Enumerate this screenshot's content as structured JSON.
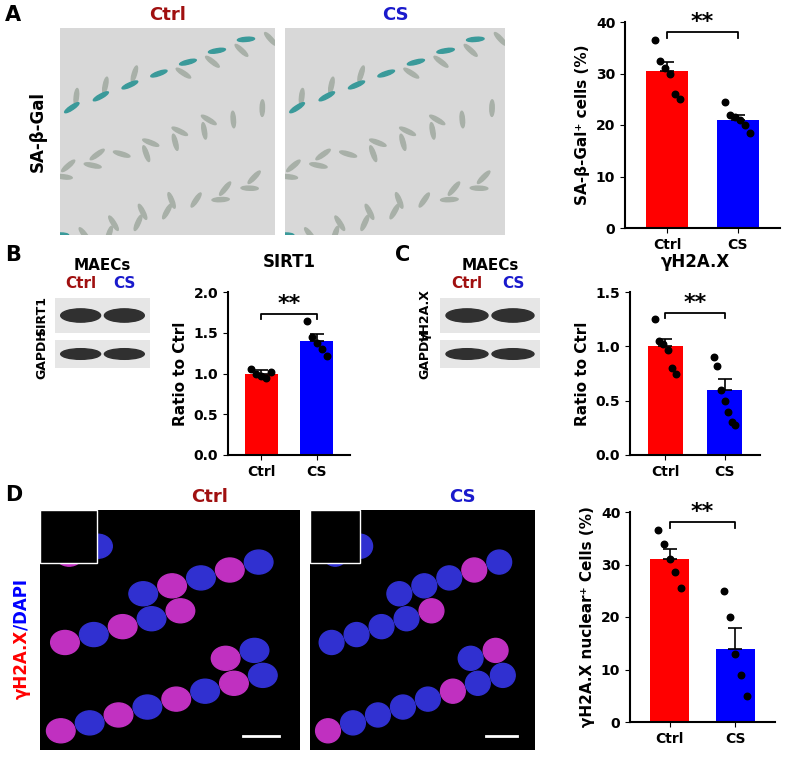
{
  "chart_data": [
    {
      "type": "bar",
      "ylabel": "SA-β-Gal⁺ cells (%)",
      "categories": [
        "Ctrl",
        "CS"
      ],
      "values": [
        30.5,
        21.0
      ],
      "errors": [
        1.8,
        1.0
      ],
      "points": [
        [
          36.5,
          32.5,
          31.0,
          30.0,
          26.0,
          25.0
        ],
        [
          24.5,
          22.0,
          21.5,
          21.0,
          20.0,
          18.5
        ]
      ],
      "colors": [
        "#ff0000",
        "#0000ff"
      ],
      "ylim": [
        0,
        40
      ],
      "yticks": [
        0,
        10,
        20,
        30,
        40
      ],
      "annotations": [
        "**"
      ]
    },
    {
      "type": "bar",
      "title": "SIRT1",
      "ylabel": "Ratio to Ctrl",
      "categories": [
        "Ctrl",
        "CS"
      ],
      "values": [
        1.0,
        1.4
      ],
      "errors": [
        0.04,
        0.08
      ],
      "points": [
        [
          1.05,
          1.0,
          0.97,
          0.95,
          1.02
        ],
        [
          1.65,
          1.45,
          1.38,
          1.3,
          1.22
        ]
      ],
      "colors": [
        "#ff0000",
        "#0000ff"
      ],
      "ylim": [
        0,
        2.0
      ],
      "yticks": [
        {
          "value": 0,
          "label": "0.0"
        },
        {
          "value": 0.5,
          "label": "0.5"
        },
        {
          "value": 1.0,
          "label": "1.0"
        },
        {
          "value": 1.5,
          "label": "1.5"
        },
        {
          "value": 2.0,
          "label": "2.0"
        }
      ],
      "annotations": [
        "**"
      ]
    },
    {
      "type": "bar",
      "title": "γH2A.X",
      "ylabel": "Ratio to Ctrl",
      "categories": [
        "Ctrl",
        "CS"
      ],
      "values": [
        1.0,
        0.6
      ],
      "errors": [
        0.07,
        0.1
      ],
      "points": [
        [
          1.25,
          1.05,
          1.02,
          0.97,
          0.8,
          0.75
        ],
        [
          0.9,
          0.82,
          0.6,
          0.5,
          0.4,
          0.3,
          0.28
        ]
      ],
      "colors": [
        "#ff0000",
        "#0000ff"
      ],
      "ylim": [
        0,
        1.5
      ],
      "yticks": [
        {
          "value": 0,
          "label": "0.0"
        },
        {
          "value": 0.5,
          "label": "0.5"
        },
        {
          "value": 1.0,
          "label": "1.0"
        },
        {
          "value": 1.5,
          "label": "1.5"
        }
      ],
      "annotations": [
        "**"
      ]
    },
    {
      "type": "bar",
      "ylabel": "γH2A.X nuclear⁺ Cells (%)",
      "categories": [
        "Ctrl",
        "CS"
      ],
      "values": [
        31.0,
        14.0
      ],
      "errors": [
        2.0,
        4.0
      ],
      "points": [
        [
          36.5,
          34.0,
          31.0,
          28.5,
          25.5
        ],
        [
          25.0,
          20.0,
          13.0,
          9.0,
          5.0
        ]
      ],
      "colors": [
        "#ff0000",
        "#0000ff"
      ],
      "ylim": [
        0,
        40
      ],
      "yticks": [
        0,
        10,
        20,
        30,
        40
      ],
      "annotations": [
        "**"
      ]
    }
  ],
  "figure": {
    "panels": [
      {
        "letter": "A",
        "columns": [
          "Ctrl",
          "CS"
        ],
        "column_colors": [
          "#a01010",
          "#1a1acc"
        ],
        "row": [
          {
            "text": "SA-β-Gal",
            "color": "#000000"
          }
        ]
      },
      {
        "letter": "B",
        "header": "MAECs",
        "columns": [
          "Ctrl",
          "CS"
        ],
        "column_colors": [
          "#a01010",
          "#1a1acc"
        ],
        "rows": [
          "SIRT1",
          "GAPDH"
        ]
      },
      {
        "letter": "C",
        "header": "MAECs",
        "columns": [
          "Ctrl",
          "CS"
        ],
        "column_colors": [
          "#a01010",
          "#1a1acc"
        ],
        "rows": [
          "γH2A.X",
          "GAPDH"
        ]
      },
      {
        "letter": "D",
        "columns": [
          "Ctrl",
          "CS"
        ],
        "column_colors": [
          "#a01010",
          "#1a1acc"
        ],
        "row": [
          {
            "text": "γH2A.X",
            "color": "#ff0000"
          },
          {
            "text": "/DAPI",
            "color": "#0000ff"
          }
        ]
      }
    ]
  }
}
